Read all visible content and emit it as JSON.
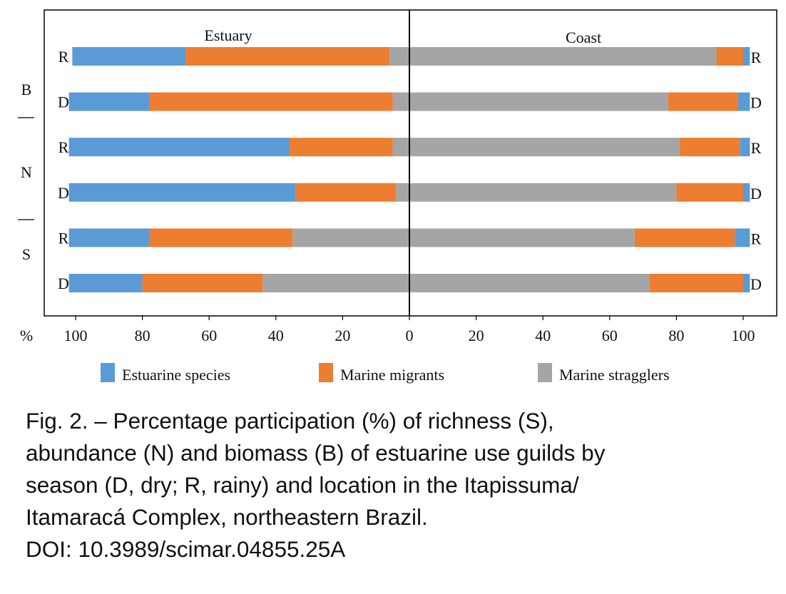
{
  "chart_data": {
    "type": "bar",
    "subtype": "diverging-stacked-horizontal",
    "panels": [
      {
        "name": "Estuary",
        "direction": "left"
      },
      {
        "name": "Coast",
        "direction": "right"
      }
    ],
    "x_unit_label": "%",
    "xlim": [
      0,
      100
    ],
    "x_ticks": [
      0,
      20,
      40,
      60,
      80,
      100
    ],
    "rows": [
      {
        "group": "B",
        "season": "R",
        "Estuary": {
          "Estuarine species": 34,
          "Marine migrants": 61,
          "Marine stragglers": 6
        },
        "Coast": {
          "Estuarine species": 2,
          "Marine migrants": 8,
          "Marine stragglers": 92
        }
      },
      {
        "group": "B",
        "season": "D",
        "Estuary": {
          "Estuarine species": 24,
          "Marine migrants": 73,
          "Marine stragglers": 5
        },
        "Coast": {
          "Estuarine species": 3.5,
          "Marine migrants": 21,
          "Marine stragglers": 77.5
        }
      },
      {
        "group": "N",
        "season": "R",
        "Estuary": {
          "Estuarine species": 66,
          "Marine migrants": 31,
          "Marine stragglers": 5
        },
        "Coast": {
          "Estuarine species": 3,
          "Marine migrants": 18,
          "Marine stragglers": 81
        }
      },
      {
        "group": "N",
        "season": "D",
        "Estuary": {
          "Estuarine species": 68,
          "Marine migrants": 30,
          "Marine stragglers": 4
        },
        "Coast": {
          "Estuarine species": 2,
          "Marine migrants": 20,
          "Marine stragglers": 80
        }
      },
      {
        "group": "S",
        "season": "R",
        "Estuary": {
          "Estuarine species": 24,
          "Marine migrants": 43,
          "Marine stragglers": 35
        },
        "Coast": {
          "Estuarine species": 4.5,
          "Marine migrants": 30,
          "Marine stragglers": 67.5
        }
      },
      {
        "group": "S",
        "season": "D",
        "Estuary": {
          "Estuarine species": 22,
          "Marine migrants": 36,
          "Marine stragglers": 44
        },
        "Coast": {
          "Estuarine species": 2,
          "Marine migrants": 28,
          "Marine stragglers": 72
        }
      }
    ],
    "group_labels": [
      "B",
      "N",
      "S"
    ],
    "series": [
      {
        "name": "Estuarine species",
        "color": "#5b9bd5"
      },
      {
        "name": "Marine migrants",
        "color": "#ed7d31"
      },
      {
        "name": "Marine stragglers",
        "color": "#a5a5a5"
      }
    ],
    "legend_position": "bottom",
    "grid": false
  },
  "caption": {
    "lines": [
      "Fig. 2. – Percentage participation (%) of richness (S),",
      "abundance (N) and biomass (B) of estuarine use guilds by",
      "season (D, dry; R, rainy) and location in the Itapissuma/",
      "Itamaracá Complex, northeastern Brazil.",
      "DOI: 10.3989/scimar.04855.25A"
    ]
  }
}
